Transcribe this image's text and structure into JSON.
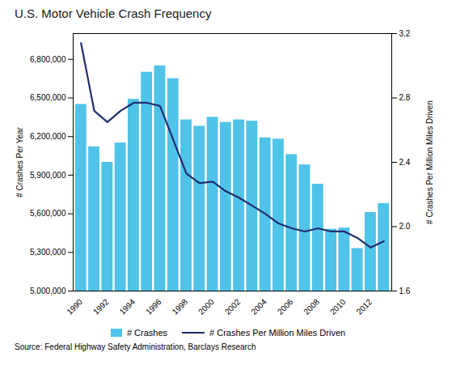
{
  "chart_data": {
    "type": "bar",
    "title": "U.S. Motor Vehicle Crash Frequency",
    "x": [
      1990,
      1991,
      1992,
      1993,
      1994,
      1995,
      1996,
      1997,
      1998,
      1999,
      2000,
      2001,
      2002,
      2003,
      2004,
      2005,
      2006,
      2007,
      2008,
      2009,
      2010,
      2011,
      2012,
      2013
    ],
    "xlim": [
      1989.4,
      2013.6
    ],
    "xticks": [
      1990,
      1992,
      1994,
      1996,
      1998,
      2000,
      2002,
      2004,
      2006,
      2008,
      2010,
      2012
    ],
    "ylabel": "# Crashes Per Year",
    "ylim": [
      5000000,
      7000000
    ],
    "yticks": [
      {
        "value": 5000000,
        "label": "5,000,000"
      },
      {
        "value": 5300000,
        "label": "5,300,000"
      },
      {
        "value": 5600000,
        "label": "5,600,000"
      },
      {
        "value": 5900000,
        "label": "5,900,000"
      },
      {
        "value": 6200000,
        "label": "6,200,000"
      },
      {
        "value": 6500000,
        "label": "6,500,000"
      },
      {
        "value": 6800000,
        "label": "6,800,000"
      }
    ],
    "y2label": "# Crashes Per Million Miles Driven",
    "y2lim": [
      1.6,
      3.2
    ],
    "y2ticks": [
      1.6,
      {
        "value": 2.0,
        "label": "2.0"
      },
      2.4,
      2.8,
      3.2
    ],
    "series": [
      {
        "name": "# Crashes",
        "type": "bar",
        "color": "#4FC3E8",
        "values": [
          6450000,
          6120000,
          6000000,
          6150000,
          6490000,
          6700000,
          6750000,
          6650000,
          6330000,
          6280000,
          6350000,
          6310000,
          6330000,
          6320000,
          6190000,
          6180000,
          6060000,
          5980000,
          5830000,
          5480000,
          5490000,
          5330000,
          5610000,
          5680000
        ]
      },
      {
        "name": "# Crashes Per Million Miles Driven",
        "type": "line",
        "color": "#1F2D6E",
        "axis": "y2",
        "values": [
          3.14,
          2.72,
          2.65,
          2.72,
          2.77,
          2.77,
          2.75,
          2.54,
          2.33,
          2.27,
          2.28,
          2.22,
          2.18,
          2.13,
          2.08,
          2.02,
          1.99,
          1.97,
          1.99,
          1.97,
          1.97,
          1.93,
          1.87,
          1.91
        ]
      }
    ],
    "grid": false,
    "legend": "bottom",
    "source": "Source: Federal Highway Safety Administration, Barclays Research"
  }
}
